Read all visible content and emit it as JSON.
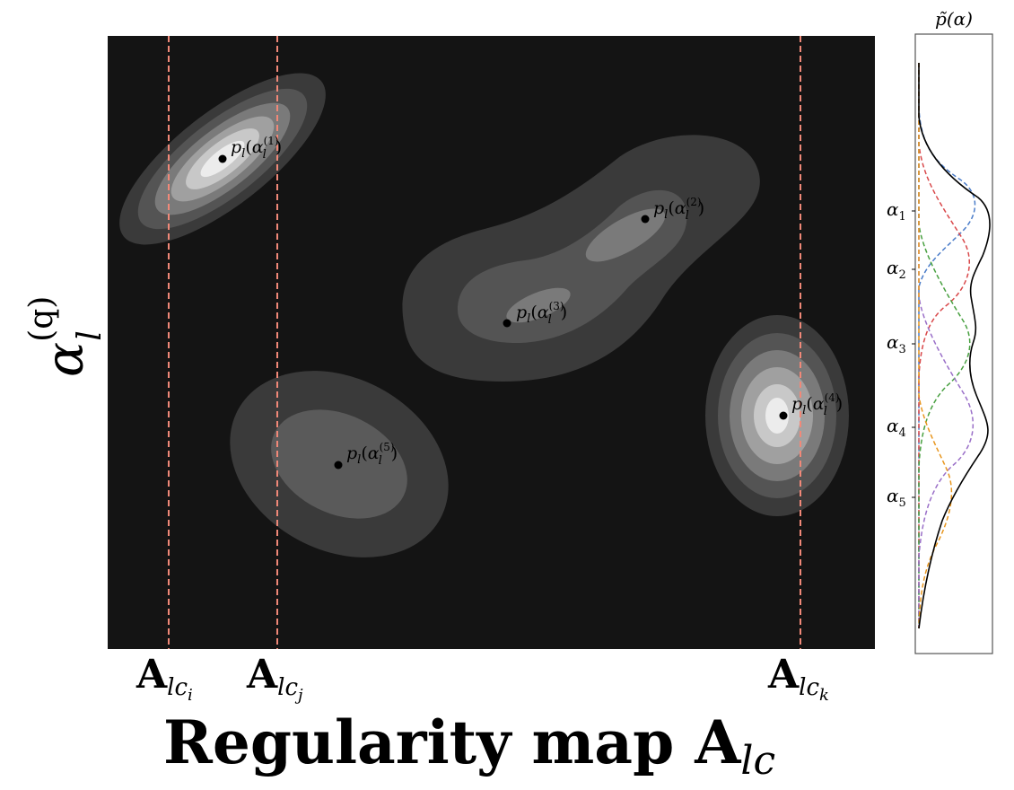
{
  "colors": {
    "map_background": "#141414",
    "divider_line": "#f08878",
    "peak_marker": "#000000",
    "mixture_total": "#000000",
    "components": [
      "#4a7cc9",
      "#d9484a",
      "#48a040",
      "#9a6fc8",
      "#e8961e"
    ]
  },
  "y_axis_label": {
    "base": "α",
    "sub": "l",
    "sup": "(q)"
  },
  "x_axis_label": {
    "text": "Regularity map ",
    "bold_symbol": "A",
    "sub": "lc"
  },
  "dividers": [
    {
      "symbol": "A",
      "sub": "lc",
      "subsub": "i"
    },
    {
      "symbol": "A",
      "sub": "lc",
      "subsub": "j"
    },
    {
      "symbol": "A",
      "sub": "lc",
      "subsub": "k"
    }
  ],
  "peaks": [
    {
      "base": "p",
      "sub": "l",
      "arg": "α",
      "arg_sub": "l",
      "arg_sup": "(1)"
    },
    {
      "base": "p",
      "sub": "l",
      "arg": "α",
      "arg_sub": "l",
      "arg_sup": "(2)"
    },
    {
      "base": "p",
      "sub": "l",
      "arg": "α",
      "arg_sub": "l",
      "arg_sup": "(3)"
    },
    {
      "base": "p",
      "sub": "l",
      "arg": "α",
      "arg_sub": "l",
      "arg_sup": "(4)"
    },
    {
      "base": "p",
      "sub": "l",
      "arg": "α",
      "arg_sub": "l",
      "arg_sup": "(5)"
    }
  ],
  "side_panel": {
    "title": "p̃(α)",
    "alpha_ticks": [
      {
        "base": "α",
        "sub": "1"
      },
      {
        "base": "α",
        "sub": "2"
      },
      {
        "base": "α",
        "sub": "3"
      },
      {
        "base": "α",
        "sub": "4"
      },
      {
        "base": "α",
        "sub": "5"
      }
    ]
  }
}
